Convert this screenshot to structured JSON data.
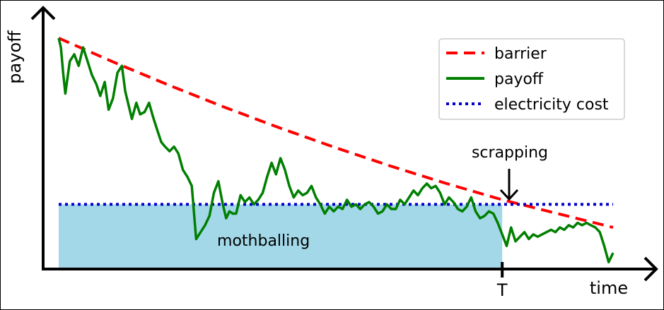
{
  "chart_data": {
    "type": "line",
    "xlabel": "time",
    "ylabel": "payoff",
    "x_marker": "T",
    "xlim": [
      0,
      1
    ],
    "ylim": [
      0,
      1
    ],
    "annotations": {
      "scrapping": "scrapping",
      "mothballing": "mothballing"
    },
    "legend": {
      "placement": "top-right",
      "entries": [
        {
          "name": "barrier",
          "color": "#ff0000",
          "style": "dashed"
        },
        {
          "name": "payoff",
          "color": "#007f00",
          "style": "solid"
        },
        {
          "name": "electricity cost",
          "color": "#0000cc",
          "style": "dotted"
        }
      ]
    },
    "mothball_region": {
      "x_start": 0.0,
      "x_end": 0.8,
      "level": 0.28,
      "color": "#a3d8e8"
    },
    "series": [
      {
        "name": "barrier",
        "color": "#ff0000",
        "x": [
          0,
          0.1,
          0.2,
          0.3,
          0.4,
          0.5,
          0.6,
          0.7,
          0.8,
          0.9,
          1.0
        ],
        "y": [
          1.0,
          0.895,
          0.795,
          0.7,
          0.61,
          0.525,
          0.445,
          0.37,
          0.3,
          0.24,
          0.18
        ]
      },
      {
        "name": "electricity cost",
        "color": "#0000cc",
        "x": [
          0,
          1.0
        ],
        "y": [
          0.28,
          0.28
        ]
      },
      {
        "name": "payoff",
        "color": "#007f00",
        "x": [
          0.0,
          0.004,
          0.008,
          0.012,
          0.02,
          0.028,
          0.036,
          0.044,
          0.052,
          0.06,
          0.068,
          0.075,
          0.083,
          0.09,
          0.098,
          0.106,
          0.114,
          0.12,
          0.126,
          0.132,
          0.14,
          0.147,
          0.155,
          0.163,
          0.17,
          0.178,
          0.185,
          0.192,
          0.2,
          0.208,
          0.216,
          0.224,
          0.232,
          0.24,
          0.248,
          0.256,
          0.264,
          0.272,
          0.28,
          0.288,
          0.296,
          0.302,
          0.308,
          0.314,
          0.32,
          0.328,
          0.336,
          0.344,
          0.352,
          0.36,
          0.368,
          0.376,
          0.384,
          0.392,
          0.4,
          0.408,
          0.416,
          0.424,
          0.432,
          0.44,
          0.448,
          0.456,
          0.464,
          0.472,
          0.48,
          0.488,
          0.496,
          0.504,
          0.512,
          0.52,
          0.528,
          0.536,
          0.544,
          0.552,
          0.56,
          0.568,
          0.576,
          0.584,
          0.592,
          0.6,
          0.608,
          0.616,
          0.624,
          0.632,
          0.64,
          0.648,
          0.656,
          0.664,
          0.672,
          0.68,
          0.688,
          0.696,
          0.704,
          0.712,
          0.72,
          0.728,
          0.736,
          0.744,
          0.752,
          0.76,
          0.768,
          0.776,
          0.784,
          0.792,
          0.8,
          0.808,
          0.816,
          0.824,
          0.832,
          0.84,
          0.848,
          0.856,
          0.864,
          0.872,
          0.88,
          0.888,
          0.896,
          0.904,
          0.912,
          0.92,
          0.928,
          0.936,
          0.944,
          0.952,
          0.96,
          0.968,
          0.976,
          0.984,
          0.992,
          1.0
        ],
        "y": [
          1.0,
          0.96,
          0.85,
          0.76,
          0.9,
          0.93,
          0.88,
          0.96,
          0.9,
          0.84,
          0.8,
          0.75,
          0.81,
          0.69,
          0.74,
          0.85,
          0.88,
          0.77,
          0.71,
          0.65,
          0.72,
          0.67,
          0.68,
          0.72,
          0.66,
          0.6,
          0.55,
          0.53,
          0.51,
          0.53,
          0.5,
          0.43,
          0.4,
          0.36,
          0.13,
          0.16,
          0.19,
          0.23,
          0.33,
          0.38,
          0.28,
          0.22,
          0.25,
          0.24,
          0.24,
          0.32,
          0.29,
          0.31,
          0.28,
          0.3,
          0.33,
          0.4,
          0.46,
          0.41,
          0.48,
          0.43,
          0.36,
          0.31,
          0.34,
          0.32,
          0.33,
          0.36,
          0.31,
          0.28,
          0.24,
          0.27,
          0.25,
          0.27,
          0.26,
          0.3,
          0.27,
          0.28,
          0.26,
          0.28,
          0.29,
          0.27,
          0.24,
          0.25,
          0.28,
          0.26,
          0.26,
          0.3,
          0.28,
          0.31,
          0.34,
          0.32,
          0.35,
          0.37,
          0.35,
          0.36,
          0.33,
          0.28,
          0.31,
          0.29,
          0.26,
          0.25,
          0.27,
          0.31,
          0.25,
          0.22,
          0.23,
          0.25,
          0.24,
          0.2,
          0.15,
          0.1,
          0.18,
          0.12,
          0.14,
          0.16,
          0.13,
          0.15,
          0.14,
          0.15,
          0.16,
          0.17,
          0.16,
          0.18,
          0.17,
          0.19,
          0.18,
          0.2,
          0.19,
          0.2,
          0.19,
          0.18,
          0.16,
          0.1,
          0.03,
          0.07
        ]
      }
    ]
  }
}
